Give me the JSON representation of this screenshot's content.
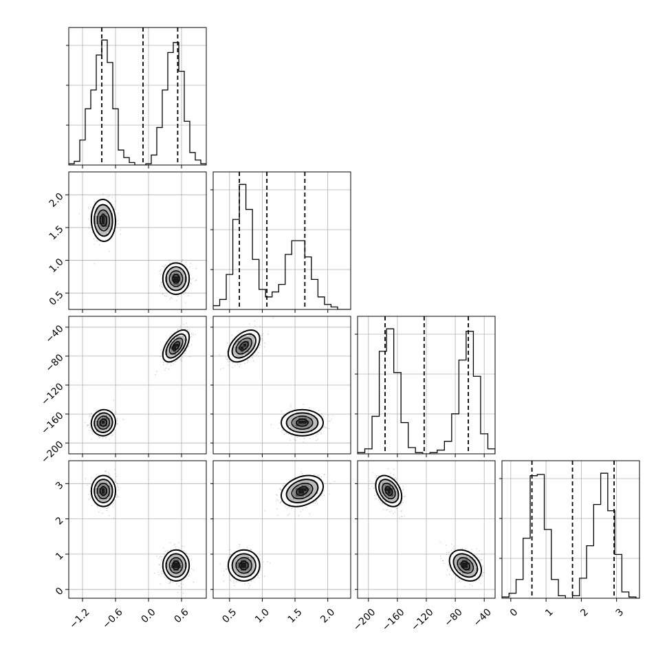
{
  "chart_data": {
    "type": "corner",
    "grid": true,
    "colors": {
      "line": "#000000",
      "grid": "#b0b0b0",
      "points": "#555555",
      "contour_fills": [
        "#ffffff",
        "#bdbdbd",
        "#8a8a8a",
        "#555555",
        "#1a1a1a"
      ]
    },
    "params": [
      {
        "range": [
          -1.45,
          1.05
        ],
        "ticks": [
          -1.2,
          -0.6,
          0.0,
          0.6
        ],
        "tick_labels": [
          "−1.2",
          "−0.6",
          "0.0",
          "0.6"
        ],
        "quantiles": [
          -0.85,
          -0.1,
          0.53
        ],
        "hist_bins": [
          -1.45,
          -1.35,
          -1.25,
          -1.15,
          -1.05,
          -0.95,
          -0.85,
          -0.75,
          -0.65,
          -0.55,
          -0.45,
          -0.35,
          -0.25,
          -0.15,
          -0.05,
          0.05,
          0.15,
          0.25,
          0.35,
          0.45,
          0.55,
          0.65,
          0.75,
          0.85,
          0.95,
          1.05
        ],
        "hist_counts": [
          1,
          3,
          20,
          45,
          60,
          88,
          100,
          82,
          45,
          12,
          6,
          2,
          0,
          0,
          1,
          8,
          30,
          60,
          90,
          98,
          75,
          35,
          10,
          4,
          1
        ]
      },
      {
        "range": [
          0.25,
          2.35
        ],
        "ticks": [
          0.5,
          1.0,
          1.5,
          2.0
        ],
        "tick_labels": [
          "0.5",
          "1.0",
          "1.5",
          "2.0"
        ],
        "quantiles": [
          0.65,
          1.07,
          1.65
        ],
        "hist_bins": [
          0.25,
          0.35,
          0.45,
          0.55,
          0.65,
          0.75,
          0.85,
          0.95,
          1.05,
          1.15,
          1.25,
          1.35,
          1.45,
          1.55,
          1.65,
          1.75,
          1.85,
          1.95,
          2.05,
          2.15,
          2.25,
          2.35
        ],
        "hist_counts": [
          3,
          8,
          28,
          72,
          100,
          80,
          40,
          16,
          10,
          14,
          20,
          44,
          55,
          55,
          42,
          24,
          10,
          4,
          2,
          0,
          0
        ]
      },
      {
        "range": [
          -215,
          -25
        ],
        "ticks": [
          -200,
          -160,
          -120,
          -80,
          -40
        ],
        "tick_labels": [
          "−200",
          "−160",
          "−120",
          "−80",
          "−40"
        ],
        "quantiles": [
          -177,
          -123,
          -62
        ],
        "hist_bins": [
          -215,
          -205,
          -195,
          -185,
          -175,
          -165,
          -155,
          -145,
          -135,
          -125,
          -115,
          -105,
          -95,
          -85,
          -75,
          -65,
          -55,
          -45,
          -35,
          -25
        ],
        "hist_counts": [
          1,
          4,
          30,
          82,
          100,
          65,
          25,
          5,
          1,
          0,
          1,
          3,
          10,
          32,
          75,
          98,
          62,
          16,
          4
        ]
      },
      {
        "range": [
          -0.25,
          3.65
        ],
        "ticks": [
          0,
          1,
          2,
          3
        ],
        "tick_labels": [
          "0",
          "1",
          "2",
          "3"
        ],
        "quantiles": [
          0.6,
          1.75,
          2.93
        ],
        "hist_bins": [
          -0.25,
          -0.05,
          0.15,
          0.35,
          0.55,
          0.75,
          0.95,
          1.15,
          1.35,
          1.55,
          1.75,
          1.95,
          2.15,
          2.35,
          2.55,
          2.75,
          2.95,
          3.15,
          3.35,
          3.55,
          3.65
        ],
        "hist_counts": [
          1,
          4,
          15,
          48,
          98,
          99,
          55,
          15,
          2,
          0,
          2,
          16,
          42,
          75,
          100,
          70,
          35,
          5,
          1,
          0
        ]
      }
    ],
    "modes": [
      {
        "name": "",
        "mu": [
          -0.82,
          1.61,
          -172,
          2.79
        ],
        "sigma": [
          0.11,
          0.16,
          9,
          0.22
        ]
      },
      {
        "name": "",
        "mu": [
          0.5,
          0.72,
          -66,
          0.68
        ],
        "sigma": [
          0.12,
          0.12,
          11,
          0.22
        ]
      }
    ]
  }
}
